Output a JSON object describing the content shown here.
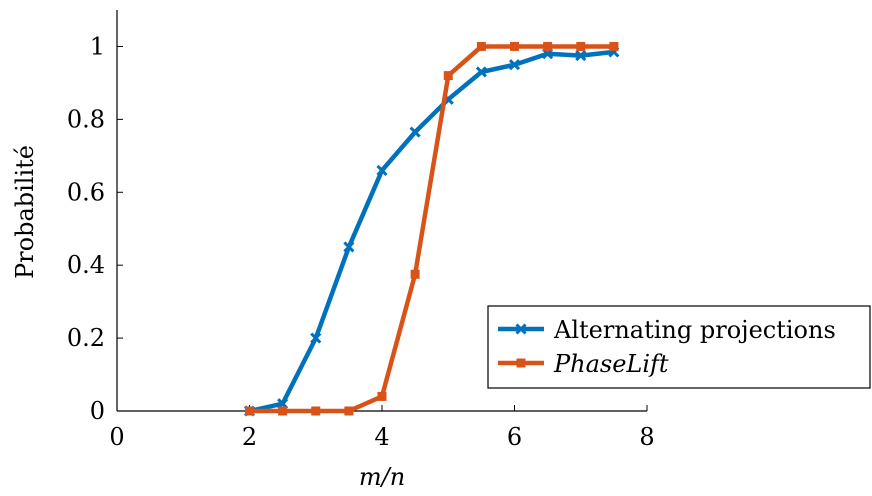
{
  "chart_data": {
    "type": "line",
    "title": "",
    "xlabel": "m/n",
    "ylabel": "Probabilité",
    "xlim": [
      0,
      8
    ],
    "ylim": [
      0,
      1.1
    ],
    "xticks": [
      0,
      2,
      4,
      6,
      8
    ],
    "yticks": [
      0,
      0.2,
      0.4,
      0.6,
      0.8,
      1
    ],
    "xtick_labels": [
      "0",
      "2",
      "4",
      "6",
      "8"
    ],
    "ytick_labels": [
      "0",
      "0.2",
      "0.4",
      "0.6",
      "0.8",
      "1"
    ],
    "grid": false,
    "legend_position": "bottom-right",
    "series": [
      {
        "name": "Alternating projections",
        "color": "#0072BD",
        "marker": "x",
        "x": [
          2,
          2.5,
          3,
          3.5,
          4,
          4.5,
          5,
          5.5,
          6,
          6.5,
          7,
          7.5
        ],
        "y": [
          0,
          0.02,
          0.2,
          0.45,
          0.66,
          0.765,
          0.855,
          0.93,
          0.95,
          0.98,
          0.975,
          0.985
        ]
      },
      {
        "name": "PhaseLift",
        "color": "#D95319",
        "marker": "square",
        "x": [
          2,
          2.5,
          3,
          3.5,
          4,
          4.5,
          5,
          5.5,
          6,
          6.5,
          7,
          7.5
        ],
        "y": [
          0,
          0,
          0,
          0,
          0.04,
          0.375,
          0.92,
          1,
          1,
          1,
          1,
          1
        ]
      }
    ]
  }
}
